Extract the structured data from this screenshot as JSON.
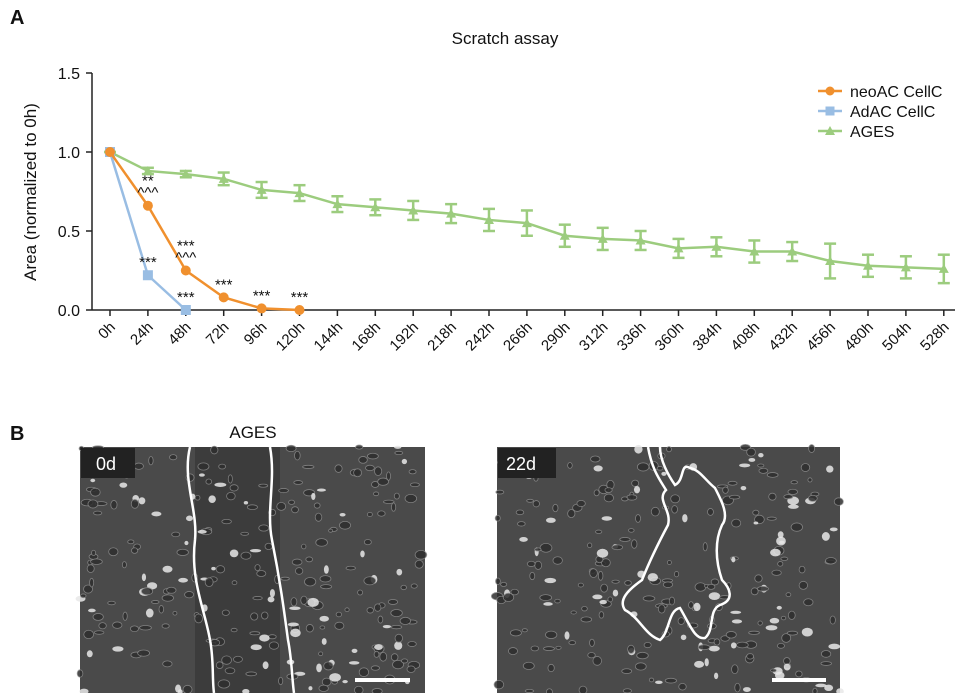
{
  "chart_data": {
    "type": "line",
    "panel": "A",
    "title": "Scratch assay",
    "y_label": "Area (normalized to 0h)",
    "categories": [
      "0h",
      "24h",
      "48h",
      "72h",
      "96h",
      "120h",
      "144h",
      "168h",
      "192h",
      "218h",
      "242h",
      "266h",
      "290h",
      "312h",
      "336h",
      "360h",
      "384h",
      "408h",
      "432h",
      "456h",
      "480h",
      "504h",
      "528h"
    ],
    "ylim": [
      0,
      1.5
    ],
    "yticks": [
      {
        "value": 0,
        "label": "0.0"
      },
      0.5,
      {
        "value": 1,
        "label": "1.0"
      },
      1.5
    ],
    "legend": "top-right",
    "series": [
      {
        "name": "neoAC CellC",
        "color": "#f0902e",
        "marker": "circle",
        "values": [
          1.0,
          0.66,
          0.25,
          0.08,
          0.01,
          0.0,
          null,
          null,
          null,
          null,
          null,
          null,
          null,
          null,
          null,
          null,
          null,
          null,
          null,
          null,
          null,
          null,
          null
        ],
        "significance": [
          null,
          [
            "**",
            "^^^"
          ],
          [
            "***",
            "^^^"
          ],
          [
            "***"
          ],
          [
            "***"
          ],
          [
            "***"
          ],
          null,
          null,
          null,
          null,
          null,
          null,
          null,
          null,
          null,
          null,
          null,
          null,
          null,
          null,
          null,
          null,
          null
        ]
      },
      {
        "name": "AdAC CellC",
        "color": "#99bde3",
        "marker": "square",
        "values": [
          1.0,
          0.22,
          0.0,
          null,
          null,
          null,
          null,
          null,
          null,
          null,
          null,
          null,
          null,
          null,
          null,
          null,
          null,
          null,
          null,
          null,
          null,
          null,
          null
        ],
        "significance": [
          null,
          [
            "***"
          ],
          [
            "***"
          ],
          null,
          null,
          null,
          null,
          null,
          null,
          null,
          null,
          null,
          null,
          null,
          null,
          null,
          null,
          null,
          null,
          null,
          null,
          null,
          null
        ]
      },
      {
        "name": "AGES",
        "color": "#9ccc7e",
        "marker": "triangle",
        "values": [
          1.0,
          0.88,
          0.86,
          0.83,
          0.76,
          0.74,
          0.67,
          0.65,
          0.63,
          0.61,
          0.57,
          0.55,
          0.47,
          0.45,
          0.44,
          0.39,
          0.4,
          0.37,
          0.37,
          0.31,
          0.28,
          0.27,
          0.26
        ],
        "errors": [
          0.0,
          0.02,
          0.02,
          0.04,
          0.05,
          0.05,
          0.05,
          0.05,
          0.06,
          0.06,
          0.07,
          0.08,
          0.07,
          0.07,
          0.06,
          0.06,
          0.06,
          0.07,
          0.06,
          0.11,
          0.07,
          0.07,
          0.09
        ]
      }
    ]
  },
  "panel_b": {
    "panel": "B",
    "title": "AGES",
    "images": [
      {
        "label": "0d"
      },
      {
        "label": "22d"
      }
    ]
  }
}
